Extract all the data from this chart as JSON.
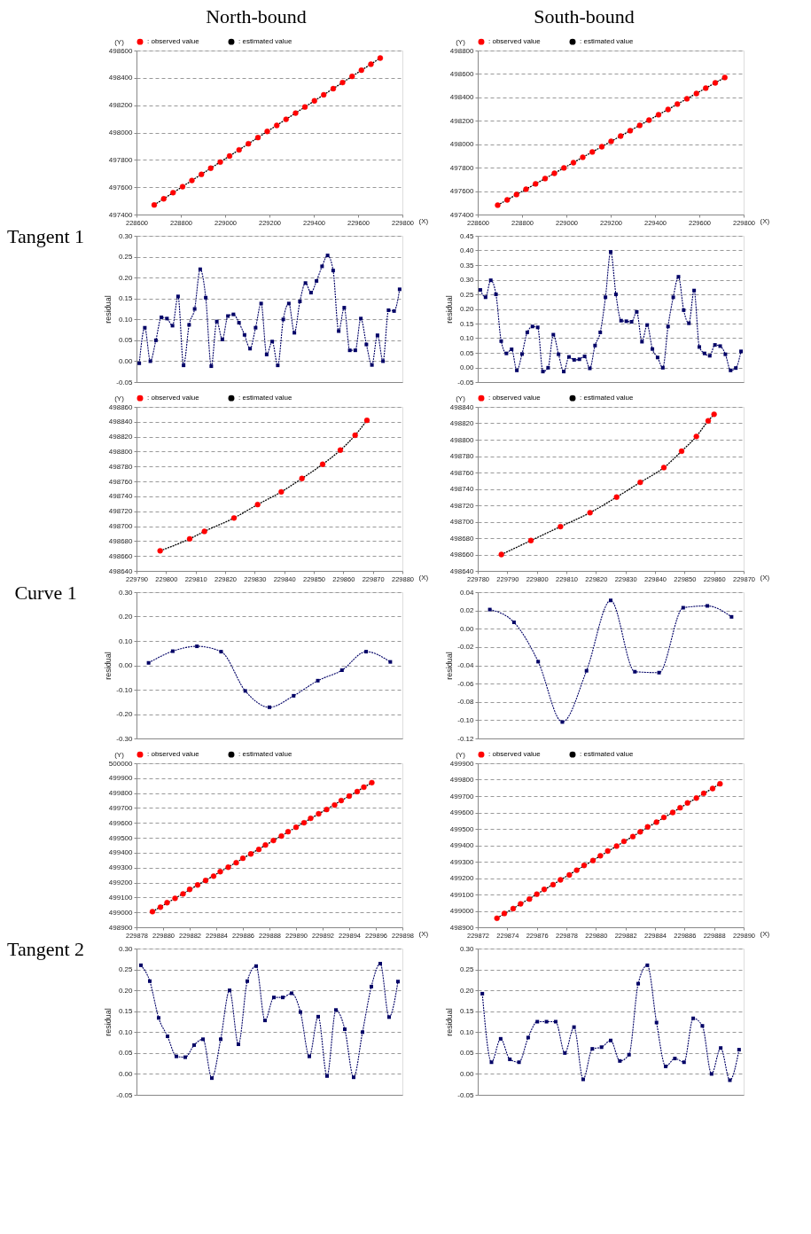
{
  "chart_data": [
    {
      "type": "scatter",
      "title": "North-bound",
      "annotations": [
        "Tangent 1"
      ],
      "xlabel": "(X)",
      "ylabel": "(Y)",
      "xlim": [
        228600,
        229800
      ],
      "xticks": [
        228600,
        228800,
        229000,
        229200,
        229400,
        229600,
        229800
      ],
      "ylim": [
        497400,
        498600
      ],
      "yticks": [
        497400,
        497600,
        497800,
        498000,
        498200,
        498400,
        498600
      ],
      "grid": "y",
      "legend": "top",
      "series": [
        {
          "name": ": observed value",
          "type": "scatter",
          "marker": "circle",
          "color": "#ff0000",
          "x": [
            228680,
            228723,
            228765,
            228808,
            228850,
            228893,
            228935,
            228978,
            229020,
            229063,
            229105,
            229148,
            229190,
            229233,
            229275,
            229318,
            229360,
            229403,
            229445,
            229488,
            229530,
            229573,
            229615,
            229658,
            229700
          ],
          "values": [
            497470,
            497515,
            497560,
            497604,
            497649,
            497694,
            497739,
            497784,
            497828,
            497873,
            497918,
            497963,
            498008,
            498052,
            498097,
            498142,
            498187,
            498232,
            498276,
            498321,
            498366,
            498411,
            498456,
            498500,
            498545
          ]
        },
        {
          "name": ": estimated value",
          "type": "line",
          "line_style": "dotted",
          "color": "#000000",
          "x": [
            228680,
            229700
          ],
          "values": [
            497470,
            498545
          ]
        }
      ]
    },
    {
      "type": "scatter",
      "title": "South-bound",
      "xlabel": "(X)",
      "ylabel": "(Y)",
      "xlim": [
        228600,
        229800
      ],
      "xticks": [
        228600,
        228800,
        229000,
        229200,
        229400,
        229600,
        229800
      ],
      "ylim": [
        497400,
        498800
      ],
      "yticks": [
        497400,
        497600,
        497800,
        498000,
        498200,
        498400,
        498600,
        498800
      ],
      "grid": "y",
      "legend": "top",
      "series": [
        {
          "name": ": observed value",
          "type": "scatter",
          "marker": "circle",
          "color": "#ff0000",
          "x": [
            228690,
            228733,
            228775,
            228818,
            228861,
            228904,
            228946,
            228989,
            229032,
            229074,
            229117,
            229160,
            229202,
            229245,
            229288,
            229331,
            229373,
            229416,
            229459,
            229501,
            229544,
            229587,
            229629,
            229672,
            229715
          ],
          "values": [
            497480,
            497525,
            497571,
            497616,
            497662,
            497707,
            497752,
            497798,
            497843,
            497889,
            497934,
            497979,
            498025,
            498070,
            498116,
            498161,
            498206,
            498252,
            498297,
            498343,
            498388,
            498433,
            498479,
            498524,
            498570
          ]
        },
        {
          "name": ": estimated value",
          "type": "line",
          "line_style": "dotted",
          "color": "#000000",
          "x": [
            228690,
            229715
          ],
          "values": [
            497480,
            498570
          ]
        }
      ]
    },
    {
      "type": "line",
      "ylabel": "residual",
      "marker": "square",
      "line_style": "dotted",
      "grid": "y",
      "categories": [
        null,
        null,
        null,
        null,
        null,
        null,
        null,
        null,
        null,
        null,
        null,
        null,
        null,
        null,
        null,
        null,
        null,
        null,
        null,
        null,
        null,
        null,
        null,
        null,
        null,
        null,
        null,
        null,
        null,
        null,
        null,
        null,
        null,
        null,
        null,
        null,
        null,
        null,
        null,
        null,
        null,
        null,
        null,
        null,
        null,
        null,
        null,
        null
      ],
      "ylim": [
        -0.05,
        0.3
      ],
      "yticks": [
        {
          "value": -0.05,
          "label": "-0.05"
        },
        {
          "value": 0,
          "label": "0.00"
        },
        {
          "value": 0.05,
          "label": "0.05"
        },
        {
          "value": 0.1,
          "label": "0.10"
        },
        {
          "value": 0.15,
          "label": "0.15"
        },
        {
          "value": 0.2,
          "label": "0.20"
        },
        {
          "value": 0.25,
          "label": "0.25"
        },
        {
          "value": 0.3,
          "label": "0.30"
        }
      ],
      "series": [
        {
          "color": "#000066",
          "values": [
            -0.005,
            0.08,
            0.0,
            0.05,
            0.105,
            0.102,
            0.085,
            0.155,
            -0.01,
            0.087,
            0.125,
            0.22,
            0.152,
            -0.012,
            0.095,
            0.052,
            0.108,
            0.112,
            0.092,
            0.063,
            0.03,
            0.08,
            0.138,
            0.016,
            0.047,
            -0.01,
            0.1,
            0.138,
            0.068,
            0.143,
            0.187,
            0.164,
            0.192,
            0.227,
            0.253,
            0.217,
            0.072,
            0.128,
            0.026,
            0.026,
            0.102,
            0.04,
            -0.009,
            0.062,
            0.0,
            0.122,
            0.12,
            0.172
          ]
        }
      ]
    },
    {
      "type": "line",
      "ylabel": "residual",
      "marker": "square",
      "line_style": "dotted",
      "grid": "y",
      "categories": [
        null,
        null,
        null,
        null,
        null,
        null,
        null,
        null,
        null,
        null,
        null,
        null,
        null,
        null,
        null,
        null,
        null,
        null,
        null,
        null,
        null,
        null,
        null,
        null,
        null,
        null,
        null,
        null,
        null,
        null,
        null,
        null,
        null,
        null,
        null,
        null,
        null,
        null,
        null,
        null,
        null,
        null,
        null,
        null,
        null,
        null,
        null,
        null,
        null,
        null,
        null
      ],
      "ylim": [
        -0.05,
        0.45
      ],
      "yticks": [
        {
          "value": -0.05,
          "label": "-0.05"
        },
        {
          "value": 0,
          "label": "0.00"
        },
        {
          "value": 0.05,
          "label": "0.05"
        },
        {
          "value": 0.1,
          "label": "0.10"
        },
        {
          "value": 0.15,
          "label": "0.15"
        },
        {
          "value": 0.2,
          "label": "0.20"
        },
        {
          "value": 0.25,
          "label": "0.25"
        },
        {
          "value": 0.3,
          "label": "0.30"
        },
        {
          "value": 0.35,
          "label": "0.35"
        },
        {
          "value": 0.4,
          "label": "0.40"
        },
        {
          "value": 0.45,
          "label": "0.45"
        }
      ],
      "series": [
        {
          "color": "#000066",
          "values": [
            0.265,
            0.24,
            0.298,
            0.25,
            0.09,
            0.048,
            0.062,
            -0.01,
            0.046,
            0.12,
            0.14,
            0.137,
            -0.014,
            -0.001,
            0.112,
            0.045,
            -0.014,
            0.036,
            0.026,
            0.028,
            0.038,
            -0.003,
            0.075,
            0.12,
            0.24,
            0.395,
            0.25,
            0.16,
            0.158,
            0.156,
            0.19,
            0.088,
            0.145,
            0.063,
            0.034,
            -0.001,
            0.14,
            0.24,
            0.31,
            0.196,
            0.151,
            0.263,
            0.07,
            0.048,
            0.04,
            0.077,
            0.073,
            0.045,
            -0.01,
            -0.002,
            0.055
          ]
        }
      ]
    },
    {
      "type": "scatter",
      "annotations": [
        "Curve 1"
      ],
      "xlabel": "(X)",
      "ylabel": "(Y)",
      "xlim": [
        229790,
        229880
      ],
      "xticks": [
        229790,
        229800,
        229810,
        229820,
        229830,
        229840,
        229850,
        229860,
        229870,
        229880
      ],
      "ylim": [
        498640,
        498860
      ],
      "yticks": [
        498640,
        498660,
        498680,
        498700,
        498720,
        498740,
        498760,
        498780,
        498800,
        498820,
        498840,
        498860
      ],
      "grid": "y",
      "legend": "top",
      "series": [
        {
          "name": ": observed value",
          "type": "scatter",
          "marker": "circle",
          "color": "#ff0000",
          "x": [
            229798,
            229808,
            229813,
            229823,
            229831,
            229839,
            229846,
            229853,
            229859,
            229864,
            229868
          ],
          "values": [
            498667,
            498683,
            498693,
            498711,
            498729,
            498746,
            498764,
            498783,
            498802,
            498822,
            498842
          ]
        },
        {
          "name": ": estimated value",
          "type": "line",
          "line_style": "dotted",
          "color": "#000000",
          "x": [
            229798,
            229808,
            229813,
            229823,
            229831,
            229839,
            229846,
            229853,
            229859,
            229864,
            229868
          ],
          "values": [
            498667,
            498683,
            498693,
            498711,
            498729,
            498746,
            498764,
            498783,
            498802,
            498822,
            498842
          ]
        }
      ]
    },
    {
      "type": "scatter",
      "xlabel": "(X)",
      "ylabel": "(Y)",
      "xlim": [
        229780,
        229870
      ],
      "xticks": [
        229780,
        229790,
        229800,
        229810,
        229820,
        229830,
        229840,
        229850,
        229860,
        229870
      ],
      "ylim": [
        498640,
        498840
      ],
      "yticks": [
        498640,
        498660,
        498680,
        498700,
        498720,
        498740,
        498760,
        498780,
        498800,
        498820,
        498840
      ],
      "grid": "y",
      "legend": "top",
      "series": [
        {
          "name": ": observed value",
          "type": "scatter",
          "marker": "circle",
          "color": "#ff0000",
          "x": [
            229788,
            229798,
            229808,
            229818,
            229827,
            229835,
            229843,
            229849,
            229854,
            229858,
            229860
          ],
          "values": [
            498660,
            498677,
            498694,
            498711,
            498730,
            498748,
            498766,
            498786,
            498804,
            498823,
            498831
          ]
        },
        {
          "name": ": estimated value",
          "type": "line",
          "line_style": "dotted",
          "color": "#000000",
          "x": [
            229788,
            229798,
            229808,
            229818,
            229827,
            229835,
            229843,
            229849,
            229854,
            229858,
            229860
          ],
          "values": [
            498660,
            498677,
            498694,
            498711,
            498730,
            498748,
            498766,
            498786,
            498804,
            498823,
            498831
          ]
        }
      ]
    },
    {
      "type": "line",
      "ylabel": "residual",
      "marker": "square",
      "line_style": "dotted",
      "grid": "y",
      "categories": [
        null,
        null,
        null,
        null,
        null,
        null,
        null,
        null,
        null,
        null,
        null
      ],
      "ylim": [
        -0.3,
        0.3
      ],
      "yticks": [
        {
          "value": -0.3,
          "label": "-0.30"
        },
        {
          "value": -0.2,
          "label": "-0.20"
        },
        {
          "value": -0.1,
          "label": "-0.10"
        },
        {
          "value": 0,
          "label": "0.00"
        },
        {
          "value": 0.1,
          "label": "0.10"
        },
        {
          "value": 0.2,
          "label": "0.20"
        },
        {
          "value": 0.3,
          "label": "0.30"
        }
      ],
      "series": [
        {
          "color": "#000066",
          "values": [
            0.01,
            0.058,
            0.078,
            0.056,
            -0.105,
            -0.172,
            -0.125,
            -0.063,
            -0.02,
            0.056,
            0.014
          ]
        }
      ]
    },
    {
      "type": "line",
      "ylabel": "residual",
      "marker": "square",
      "line_style": "dotted",
      "grid": "y",
      "categories": [
        null,
        null,
        null,
        null,
        null,
        null,
        null,
        null,
        null,
        null,
        null
      ],
      "ylim": [
        -0.12,
        0.04
      ],
      "yticks": [
        {
          "value": -0.12,
          "label": "-0.12"
        },
        {
          "value": -0.1,
          "label": "-0.10"
        },
        {
          "value": -0.08,
          "label": "-0.08"
        },
        {
          "value": -0.06,
          "label": "-0.06"
        },
        {
          "value": -0.04,
          "label": "-0.04"
        },
        {
          "value": -0.02,
          "label": "-0.02"
        },
        {
          "value": 0,
          "label": "0.00"
        },
        {
          "value": 0.02,
          "label": "0.02"
        },
        {
          "value": 0.04,
          "label": "0.04"
        }
      ],
      "series": [
        {
          "color": "#000066",
          "values": [
            0.021,
            0.007,
            -0.036,
            -0.102,
            -0.046,
            0.031,
            -0.047,
            -0.048,
            0.023,
            0.025,
            0.013
          ]
        }
      ]
    },
    {
      "type": "scatter",
      "annotations": [
        "Tangent 2"
      ],
      "xlabel": "(X)",
      "ylabel": "(Y)",
      "xlim": [
        229878,
        229898
      ],
      "xticks": [
        229878,
        229880,
        229882,
        229884,
        229886,
        229888,
        229890,
        229892,
        229894,
        229896,
        229898
      ],
      "ylim": [
        498900,
        500000
      ],
      "yticks": [
        498900,
        499000,
        499100,
        499200,
        499300,
        499400,
        499500,
        499600,
        499700,
        499800,
        499900,
        500000
      ],
      "grid": "y",
      "legend": "top",
      "series": [
        {
          "name": ": observed value",
          "type": "scatter",
          "marker": "circle",
          "color": "#ff0000",
          "x": [
            229879.2,
            229879.8,
            229880.3,
            229880.9,
            229881.5,
            229882.0,
            229882.6,
            229883.2,
            229883.8,
            229884.3,
            229884.9,
            229885.5,
            229886.0,
            229886.6,
            229887.2,
            229887.7,
            229888.3,
            229888.9,
            229889.4,
            229890.0,
            229890.6,
            229891.1,
            229891.7,
            229892.3,
            229892.9,
            229893.4,
            229894.0,
            229894.6,
            229895.1,
            229895.7
          ],
          "values": [
            499005,
            499035,
            499065,
            499094,
            499124,
            499154,
            499184,
            499214,
            499243,
            499273,
            499303,
            499333,
            499363,
            499392,
            499422,
            499452,
            499482,
            499512,
            499541,
            499571,
            499601,
            499631,
            499661,
            499690,
            499720,
            499750,
            499780,
            499810,
            499840,
            499870
          ]
        },
        {
          "name": ": estimated value",
          "type": "line",
          "line_style": "dotted",
          "color": "#000000",
          "x": [
            229879.2,
            229895.7
          ],
          "values": [
            499005,
            499870
          ]
        }
      ]
    },
    {
      "type": "scatter",
      "xlabel": "(X)",
      "ylabel": "(Y)",
      "xlim": [
        229872,
        229890
      ],
      "xticks": [
        229872,
        229874,
        229876,
        229878,
        229880,
        229882,
        229884,
        229886,
        229888,
        229890
      ],
      "ylim": [
        498900,
        499900
      ],
      "yticks": [
        498900,
        499000,
        499100,
        499200,
        499300,
        499400,
        499500,
        499600,
        499700,
        499800,
        499900
      ],
      "grid": "y",
      "legend": "top",
      "series": [
        {
          "name": ": observed value",
          "type": "scatter",
          "marker": "circle",
          "color": "#ff0000",
          "x": [
            229873.3,
            229873.8,
            229874.4,
            229874.9,
            229875.5,
            229876.0,
            229876.5,
            229877.1,
            229877.6,
            229878.2,
            229878.7,
            229879.2,
            229879.8,
            229880.3,
            229880.8,
            229881.4,
            229881.9,
            229882.5,
            229883.0,
            229883.5,
            229884.1,
            229884.6,
            229885.2,
            229885.7,
            229886.2,
            229886.8,
            229887.3,
            229887.9,
            229888.4
          ],
          "values": [
            498955,
            498984,
            499014,
            499043,
            499072,
            499102,
            499131,
            499160,
            499189,
            499219,
            499248,
            499277,
            499307,
            499336,
            499365,
            499395,
            499424,
            499453,
            499482,
            499512,
            499541,
            499570,
            499600,
            499629,
            499658,
            499688,
            499717,
            499746,
            499775
          ]
        },
        {
          "name": ": estimated value",
          "type": "line",
          "line_style": "dotted",
          "color": "#000000",
          "x": [
            229873.3,
            229888.4
          ],
          "values": [
            498955,
            499775
          ]
        }
      ]
    },
    {
      "type": "line",
      "ylabel": "residual",
      "marker": "square",
      "line_style": "dotted",
      "grid": "y",
      "categories": [
        null,
        null,
        null,
        null,
        null,
        null,
        null,
        null,
        null,
        null,
        null,
        null,
        null,
        null,
        null,
        null,
        null,
        null,
        null,
        null,
        null,
        null,
        null,
        null,
        null,
        null,
        null,
        null,
        null,
        null
      ],
      "ylim": [
        -0.05,
        0.3
      ],
      "yticks": [
        {
          "value": -0.05,
          "label": "-0.05"
        },
        {
          "value": 0,
          "label": "0.00"
        },
        {
          "value": 0.05,
          "label": "0.05"
        },
        {
          "value": 0.1,
          "label": "0.10"
        },
        {
          "value": 0.15,
          "label": "0.15"
        },
        {
          "value": 0.2,
          "label": "0.20"
        },
        {
          "value": 0.25,
          "label": "0.25"
        },
        {
          "value": 0.3,
          "label": "0.30"
        }
      ],
      "series": [
        {
          "color": "#000066",
          "values": [
            0.26,
            0.222,
            0.134,
            0.09,
            0.042,
            0.04,
            0.069,
            0.083,
            -0.01,
            0.083,
            0.2,
            0.071,
            0.222,
            0.258,
            0.128,
            0.183,
            0.183,
            0.193,
            0.148,
            0.042,
            0.137,
            -0.005,
            0.153,
            0.107,
            -0.008,
            0.1,
            0.209,
            0.264,
            0.136,
            0.221
          ]
        }
      ]
    },
    {
      "type": "line",
      "ylabel": "residual",
      "marker": "square",
      "line_style": "dotted",
      "grid": "y",
      "categories": [
        null,
        null,
        null,
        null,
        null,
        null,
        null,
        null,
        null,
        null,
        null,
        null,
        null,
        null,
        null,
        null,
        null,
        null,
        null,
        null,
        null,
        null,
        null,
        null,
        null,
        null,
        null,
        null,
        null
      ],
      "ylim": [
        -0.05,
        0.3
      ],
      "yticks": [
        {
          "value": -0.05,
          "label": "-0.05"
        },
        {
          "value": 0,
          "label": "0.00"
        },
        {
          "value": 0.05,
          "label": "0.05"
        },
        {
          "value": 0.1,
          "label": "0.10"
        },
        {
          "value": 0.15,
          "label": "0.15"
        },
        {
          "value": 0.2,
          "label": "0.20"
        },
        {
          "value": 0.25,
          "label": "0.25"
        },
        {
          "value": 0.3,
          "label": "0.30"
        }
      ],
      "series": [
        {
          "color": "#000066",
          "values": [
            0.192,
            0.028,
            0.084,
            0.035,
            0.028,
            0.087,
            0.125,
            0.125,
            0.125,
            0.05,
            0.112,
            -0.013,
            0.06,
            0.064,
            0.08,
            0.031,
            0.046,
            0.216,
            0.26,
            0.123,
            0.018,
            0.037,
            0.028,
            0.133,
            0.115,
            0.0,
            0.062,
            -0.015,
            0.058
          ]
        }
      ]
    }
  ]
}
